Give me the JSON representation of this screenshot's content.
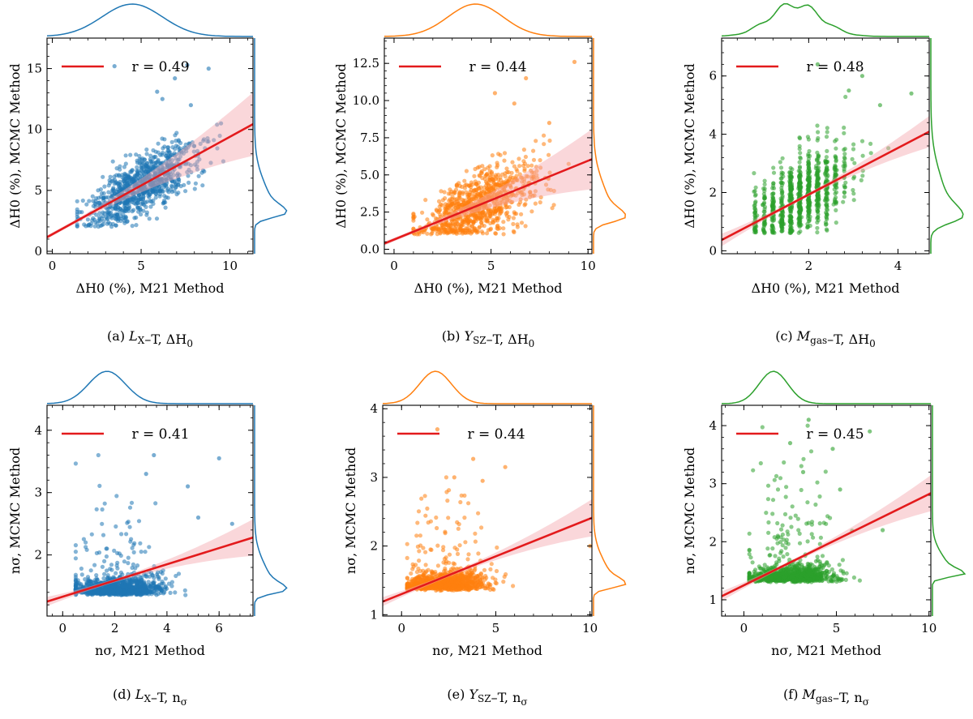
{
  "chart_data": [
    {
      "type": "scatter",
      "panel": "a",
      "caption": {
        "label": "(a)",
        "var": "L",
        "sub": "X",
        "rest": "–T, ΔH",
        "sub2": "0"
      },
      "xlabel": "ΔH0 (%), M21 Method",
      "ylabel": "ΔH0 (%), MCMC Method",
      "xlim": [
        -0.3,
        11.3
      ],
      "ylim": [
        -0.2,
        17.5
      ],
      "xticks": [
        0,
        5,
        10
      ],
      "yticks": [
        0,
        5,
        10,
        15
      ],
      "ytick_labels": [
        "0",
        "5",
        "10",
        "15"
      ],
      "color": "#1f77b4",
      "legend": "r = 0.49",
      "regression": {
        "intercept": 1.4,
        "slope": 0.8,
        "band": [
          0.2,
          0.8
        ]
      },
      "points": {
        "n": 900,
        "xmin": 1.4,
        "xmax": 9.8,
        "xmean": 5.0,
        "xsd": 1.6,
        "ymin": 2.0,
        "ymax": 15.3,
        "yspread": 1.5,
        "outliers": [
          [
            3.5,
            15.2
          ],
          [
            7.6,
            15.3
          ],
          [
            8.8,
            15.0
          ],
          [
            6.9,
            14.2
          ],
          [
            6.2,
            12.5
          ],
          [
            9.5,
            10.5
          ],
          [
            7.8,
            12.0
          ],
          [
            5.9,
            13.1
          ]
        ]
      },
      "top_kde": {
        "peak": 4.5,
        "width": 2.4
      },
      "right_kde": {
        "peak": 3.2,
        "width": 0.9,
        "skew": 3.5
      }
    },
    {
      "type": "scatter",
      "panel": "b",
      "caption": {
        "label": "(b)",
        "var": "Y",
        "sub": "SZ",
        "rest": "–T, ΔH",
        "sub2": "0"
      },
      "xlabel": "ΔH0 (%), M21 Method",
      "ylabel": "ΔH0 (%), MCMC Method",
      "xlim": [
        -0.5,
        10.2
      ],
      "ylim": [
        -0.3,
        14.2
      ],
      "xticks": [
        0,
        5,
        10
      ],
      "yticks": [
        0.0,
        2.5,
        5.0,
        7.5,
        10.0,
        12.5
      ],
      "ytick_labels": [
        "0.0",
        "2.5",
        "5.0",
        "7.5",
        "10.0",
        "12.5"
      ],
      "color": "#ff7f0e",
      "legend": "r = 0.44",
      "regression": {
        "intercept": 0.65,
        "slope": 0.53,
        "band": [
          0.2,
          0.8
        ]
      },
      "points": {
        "n": 900,
        "xmin": 1.0,
        "xmax": 9.0,
        "xmean": 4.4,
        "xsd": 1.5,
        "ymin": 1.0,
        "ymax": 12.8,
        "yspread": 1.3,
        "outliers": [
          [
            9.3,
            12.6
          ],
          [
            6.8,
            11.5
          ],
          [
            5.2,
            10.5
          ],
          [
            8.0,
            8.5
          ],
          [
            6.2,
            9.8
          ]
        ]
      },
      "top_kde": {
        "peak": 4.2,
        "width": 2.0
      },
      "right_kde": {
        "peak": 2.2,
        "width": 0.8,
        "skew": 3.5
      }
    },
    {
      "type": "scatter",
      "panel": "c",
      "caption": {
        "label": "(c)",
        "var": "M",
        "sub": "gas",
        "rest": "–T, ΔH",
        "sub2": "0"
      },
      "xlabel": "ΔH0 (%), M21 Method",
      "ylabel": "ΔH0 (%), MCMC Method",
      "xlim": [
        0.05,
        4.7
      ],
      "ylim": [
        -0.1,
        7.3
      ],
      "xticks": [
        2,
        4
      ],
      "yticks": [
        0,
        2,
        4,
        6
      ],
      "ytick_labels": [
        "0",
        "2",
        "4",
        "6"
      ],
      "color": "#2ca02c",
      "legend": "r = 0.48",
      "regression": {
        "intercept": 0.33,
        "slope": 0.8,
        "band": [
          0.5,
          3.0
        ]
      },
      "points": {
        "n": 900,
        "xmin": 0.8,
        "xmax": 4.2,
        "xmean": 1.8,
        "xsd": 0.55,
        "ymin": 0.6,
        "ymax": 6.5,
        "yspread": 0.9,
        "outliers": [
          [
            3.2,
            6.0
          ],
          [
            2.9,
            5.5
          ],
          [
            4.3,
            5.4
          ],
          [
            3.6,
            5.0
          ],
          [
            2.2,
            6.4
          ]
        ]
      },
      "top_kde": {
        "peak": 1.7,
        "width": 0.8
      },
      "right_kde": {
        "peak": 1.2,
        "width": 0.55,
        "skew": 3.2
      }
    },
    {
      "type": "scatter",
      "panel": "d",
      "caption": {
        "label": "(d)",
        "var": "L",
        "sub": "X",
        "rest": "–T, n",
        "sub2": "σ"
      },
      "xlabel": "nσ, M21 Method",
      "ylabel": "nσ, MCMC Method",
      "xlim": [
        -0.6,
        7.3
      ],
      "ylim": [
        1.02,
        4.4
      ],
      "xticks": [
        0,
        2,
        4,
        6
      ],
      "yticks": [
        2,
        3,
        4
      ],
      "ytick_labels": [
        "2",
        "3",
        "4"
      ],
      "color": "#1f77b4",
      "legend": "r = 0.41",
      "regression": {
        "intercept": 1.33,
        "slope": 0.13,
        "band": [
          0.5,
          3.0
        ]
      },
      "points": {
        "n": 1000,
        "xmin": 0.5,
        "xmax": 6.6,
        "xmean": 2.1,
        "xsd": 0.9,
        "ymin": 1.35,
        "ymax": 3.6,
        "yspread": 0.25,
        "outliers": [
          [
            3.5,
            3.6
          ],
          [
            6.0,
            3.55
          ],
          [
            4.8,
            3.1
          ],
          [
            3.2,
            3.3
          ],
          [
            5.2,
            2.6
          ],
          [
            6.5,
            2.5
          ]
        ]
      },
      "top_kde": {
        "peak": 1.7,
        "width": 1.0
      },
      "right_kde": {
        "peak": 1.45,
        "width": 0.15,
        "skew": 3.5
      }
    },
    {
      "type": "scatter",
      "panel": "e",
      "caption": {
        "label": "(e)",
        "var": "Y",
        "sub": "SZ",
        "rest": "–T, n",
        "sub2": "σ"
      },
      "xlabel": "nσ, M21 Method",
      "ylabel": "nσ, MCMC Method",
      "xlim": [
        -1.0,
        10.1
      ],
      "ylim": [
        0.98,
        4.05
      ],
      "xticks": [
        0,
        5,
        10
      ],
      "yticks": [
        1,
        2,
        3,
        4
      ],
      "ytick_labels": [
        "1",
        "2",
        "3",
        "4"
      ],
      "color": "#ff7f0e",
      "legend": "r = 0.44",
      "regression": {
        "intercept": 1.3,
        "slope": 0.11,
        "band": [
          0.5,
          4.0
        ]
      },
      "points": {
        "n": 1000,
        "xmin": 0.3,
        "xmax": 7.0,
        "xmean": 2.3,
        "xsd": 1.1,
        "ymin": 1.35,
        "ymax": 3.3,
        "yspread": 0.22,
        "outliers": [
          [
            1.9,
            3.7
          ],
          [
            3.8,
            3.27
          ],
          [
            5.5,
            3.15
          ],
          [
            2.8,
            3.0
          ],
          [
            4.3,
            2.95
          ],
          [
            10.0,
            2.0
          ]
        ]
      },
      "top_kde": {
        "peak": 1.8,
        "width": 1.2
      },
      "right_kde": {
        "peak": 1.45,
        "width": 0.13,
        "skew": 3.5
      }
    },
    {
      "type": "scatter",
      "panel": "f",
      "caption": {
        "label": "(f)",
        "var": "M",
        "sub": "gas",
        "rest": "–T, n",
        "sub2": "σ"
      },
      "xlabel": "nσ, M21 Method",
      "ylabel": "nσ, MCMC Method",
      "xlim": [
        -1.2,
        10.1
      ],
      "ylim": [
        0.72,
        4.35
      ],
      "xticks": [
        0,
        5,
        10
      ],
      "yticks": [
        1,
        2,
        3,
        4
      ],
      "ytick_labels": [
        "1",
        "2",
        "3",
        "4"
      ],
      "color": "#2ca02c",
      "legend": "r = 0.45",
      "regression": {
        "intercept": 1.25,
        "slope": 0.157,
        "band": [
          0.5,
          4.0
        ]
      },
      "points": {
        "n": 1000,
        "xmin": 0.3,
        "xmax": 7.0,
        "xmean": 2.4,
        "xsd": 1.2,
        "ymin": 1.3,
        "ymax": 4.0,
        "yspread": 0.22,
        "outliers": [
          [
            3.5,
            4.1
          ],
          [
            6.8,
            3.9
          ],
          [
            4.8,
            3.6
          ],
          [
            2.5,
            3.7
          ],
          [
            3.2,
            3.2
          ],
          [
            5.2,
            2.9
          ],
          [
            7.5,
            2.2
          ]
        ]
      },
      "top_kde": {
        "peak": 1.6,
        "width": 1.1
      },
      "right_kde": {
        "peak": 1.45,
        "width": 0.12,
        "skew": 3.5
      }
    }
  ]
}
